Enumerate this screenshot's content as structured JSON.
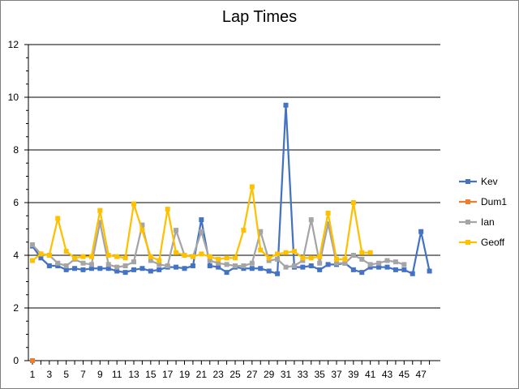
{
  "chart_data": {
    "type": "line",
    "title": "Lap Times",
    "xlabel": "",
    "ylabel": "",
    "ylim": [
      0,
      12
    ],
    "yticks": [
      0,
      2,
      4,
      6,
      8,
      10,
      12
    ],
    "xlim": [
      1,
      48
    ],
    "xtick_labels": [
      1,
      3,
      5,
      7,
      9,
      11,
      13,
      15,
      17,
      19,
      21,
      23,
      25,
      27,
      29,
      31,
      33,
      35,
      37,
      39,
      41,
      43,
      45,
      47
    ],
    "grid": "horizontal",
    "legend_position": "right",
    "series": [
      {
        "name": "Kev",
        "color": "#4472c4",
        "x": [
          1,
          2,
          3,
          4,
          5,
          6,
          7,
          8,
          9,
          10,
          11,
          12,
          13,
          14,
          15,
          16,
          17,
          18,
          19,
          20,
          21,
          22,
          23,
          24,
          25,
          26,
          27,
          28,
          29,
          30,
          31,
          32,
          33,
          34,
          35,
          36,
          37,
          38,
          39,
          40,
          41,
          42,
          43,
          44,
          45,
          46,
          47,
          48
        ],
        "values": [
          4.35,
          3.9,
          3.6,
          3.6,
          3.45,
          3.5,
          3.45,
          3.5,
          3.5,
          3.5,
          3.4,
          3.35,
          3.45,
          3.5,
          3.4,
          3.45,
          3.55,
          3.55,
          3.5,
          3.6,
          5.35,
          3.6,
          3.55,
          3.35,
          3.55,
          3.5,
          3.5,
          3.5,
          3.4,
          3.3,
          9.7,
          3.55,
          3.55,
          3.6,
          3.45,
          3.65,
          3.65,
          3.7,
          3.45,
          3.35,
          3.55,
          3.55,
          3.55,
          3.45,
          3.45,
          3.3,
          4.9,
          3.4
        ]
      },
      {
        "name": "Dum1",
        "color": "#ed7d31",
        "x": [
          1
        ],
        "values": [
          0
        ]
      },
      {
        "name": "Ian",
        "color": "#a5a5a5",
        "x": [
          1,
          2,
          3,
          4,
          5,
          6,
          7,
          8,
          9,
          10,
          11,
          12,
          13,
          14,
          15,
          16,
          17,
          18,
          19,
          20,
          21,
          22,
          23,
          24,
          25,
          26,
          27,
          28,
          29,
          30,
          31,
          32,
          33,
          34,
          35,
          36,
          37,
          38,
          39,
          40,
          41,
          42,
          43,
          44,
          45
        ],
        "values": [
          4.4,
          4.05,
          4.0,
          3.7,
          3.6,
          3.85,
          3.7,
          3.65,
          5.25,
          3.65,
          3.55,
          3.6,
          3.75,
          5.15,
          3.8,
          3.65,
          3.6,
          4.95,
          4.0,
          3.95,
          4.9,
          3.8,
          3.7,
          3.65,
          3.6,
          3.6,
          3.7,
          4.9,
          3.8,
          3.85,
          3.55,
          3.6,
          3.8,
          5.35,
          3.7,
          5.2,
          3.7,
          3.7,
          4.0,
          3.85,
          3.65,
          3.7,
          3.8,
          3.75,
          3.65
        ]
      },
      {
        "name": "Geoff",
        "color": "#ffc000",
        "x": [
          1,
          2,
          3,
          4,
          5,
          6,
          7,
          8,
          9,
          10,
          11,
          12,
          13,
          14,
          15,
          16,
          17,
          18,
          19,
          20,
          21,
          22,
          23,
          24,
          25,
          26,
          27,
          28,
          29,
          30,
          31,
          32,
          33,
          34,
          35,
          36,
          37,
          38,
          39,
          40,
          41
        ],
        "values": [
          3.8,
          4.05,
          4.0,
          5.4,
          4.15,
          3.9,
          3.95,
          3.95,
          5.7,
          4.0,
          3.95,
          3.9,
          5.95,
          4.95,
          3.95,
          3.8,
          5.75,
          4.1,
          4.0,
          3.95,
          4.05,
          3.95,
          3.85,
          3.9,
          3.9,
          4.95,
          6.6,
          4.2,
          3.9,
          4.05,
          4.1,
          4.15,
          3.9,
          3.9,
          3.95,
          5.6,
          3.85,
          3.85,
          6.0,
          4.1,
          4.1
        ]
      }
    ]
  }
}
